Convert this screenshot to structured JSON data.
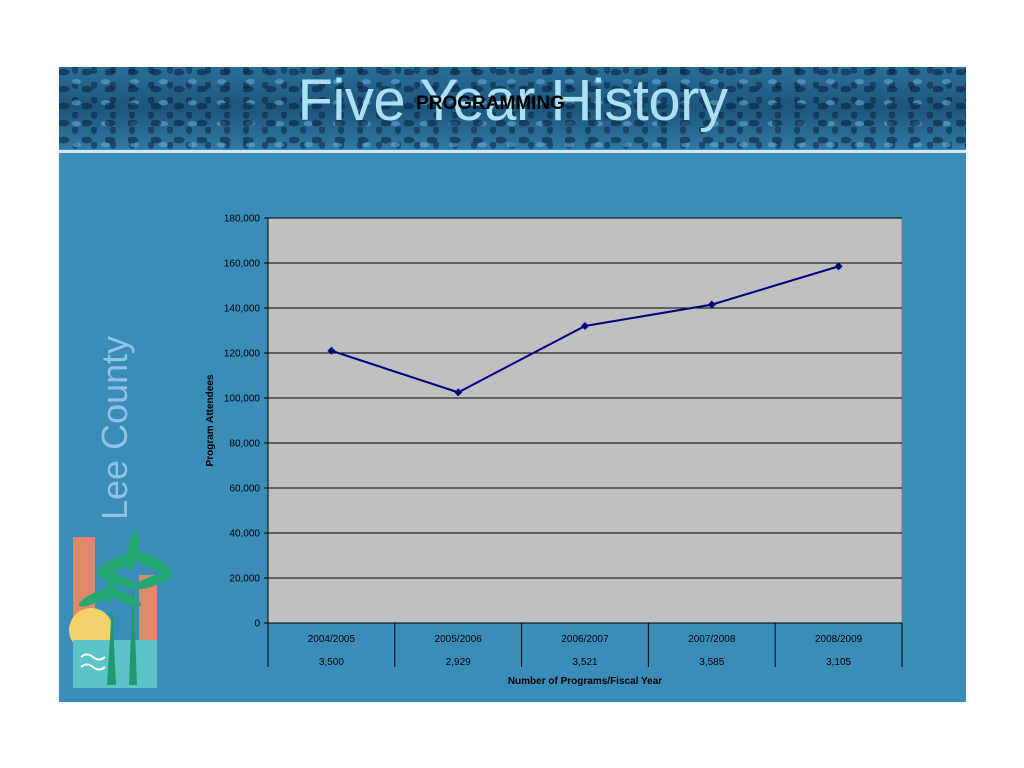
{
  "slide": {
    "title": "Five Year History",
    "logo_text": "Lee County"
  },
  "colors": {
    "background": "#3a8cb9",
    "plot_area": "#c0c0c0",
    "series_line": "#000080",
    "title_text": "#aee0f4"
  },
  "chart_data": {
    "type": "line",
    "title": "PROGRAMMING",
    "ylabel": "Program Attendees",
    "xlabel": "Number of Programs/Fiscal Year",
    "ylim": [
      0,
      180000
    ],
    "yticks": [
      0,
      20000,
      40000,
      60000,
      80000,
      100000,
      120000,
      140000,
      160000,
      180000
    ],
    "ytick_labels": [
      "0",
      "20,000",
      "40,000",
      "60,000",
      "80,000",
      "100,000",
      "120,000",
      "140,000",
      "160,000",
      "180,000"
    ],
    "categories": [
      "2004/2005",
      "2005/2006",
      "2006/2007",
      "2007/2008",
      "2008/2009"
    ],
    "secondary_labels": [
      "3,500",
      "2,929",
      "3,521",
      "3,585",
      "3,105"
    ],
    "values": [
      121000,
      102500,
      132000,
      141500,
      158500
    ],
    "grid": true,
    "legend": "none"
  }
}
